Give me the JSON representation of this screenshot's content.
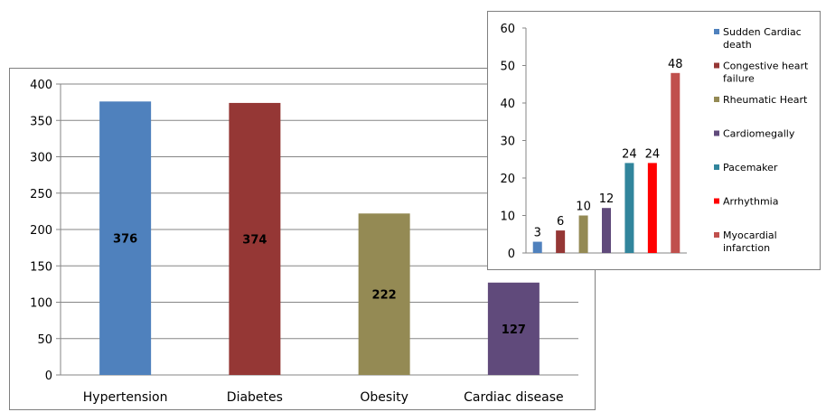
{
  "chart_data": [
    {
      "type": "bar",
      "categories": [
        "Hypertension",
        "Diabetes",
        "Obesity",
        "Cardiac disease"
      ],
      "values": [
        376,
        374,
        222,
        127
      ],
      "colors": [
        "#4f81bd",
        "#953735",
        "#948a54",
        "#604a7b"
      ],
      "ylim": [
        0,
        400
      ],
      "yticks": [
        0,
        50,
        100,
        150,
        200,
        250,
        300,
        350,
        400
      ],
      "grid": true,
      "legend": false
    },
    {
      "type": "bar",
      "categories": [
        "Sudden Cardiac death",
        "Congestive heart failure",
        "Rheumatic Heart",
        "Cardiomegally",
        "Pacemaker",
        "Arrhythmia",
        "Myocardial infarction"
      ],
      "values": [
        3,
        6,
        10,
        12,
        24,
        24,
        48
      ],
      "colors": [
        "#4f81bd",
        "#953735",
        "#948a54",
        "#604a7b",
        "#31859c",
        "#ff0000",
        "#c0504d"
      ],
      "ylim": [
        0,
        60
      ],
      "yticks": [
        0,
        10,
        20,
        30,
        40,
        50,
        60
      ],
      "grid": false,
      "legend": "right"
    }
  ]
}
